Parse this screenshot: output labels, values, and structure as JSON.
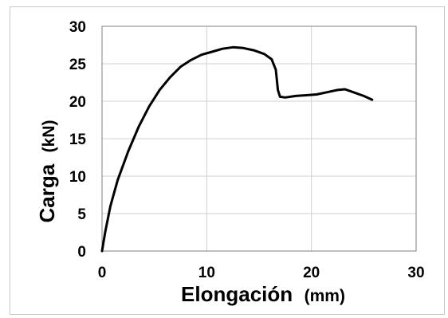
{
  "chart_data": {
    "type": "line",
    "title": "",
    "xlabel": "Elongación",
    "xlabel_unit": "(mm)",
    "ylabel": "Carga",
    "ylabel_unit": "(kN)",
    "xlim": [
      0,
      30
    ],
    "ylim": [
      0,
      30
    ],
    "xticks": [
      0,
      10,
      20,
      30
    ],
    "yticks": [
      0,
      5,
      10,
      15,
      20,
      25,
      30
    ],
    "grid": true,
    "legend": "none",
    "series": [
      {
        "color": "#000000",
        "x": [
          0,
          0.3,
          0.8,
          1.5,
          2.5,
          3.5,
          4.5,
          5.5,
          6.5,
          7.5,
          8.5,
          9.5,
          10.5,
          11.5,
          12.5,
          13.5,
          14.5,
          15.5,
          16.2,
          16.6,
          16.8,
          17.0,
          17.5,
          18.5,
          19.5,
          20.5,
          21.5,
          22.5,
          23.2,
          24.0,
          25.0,
          25.8
        ],
        "y": [
          0,
          2.5,
          6.0,
          9.5,
          13.3,
          16.6,
          19.3,
          21.5,
          23.2,
          24.6,
          25.5,
          26.2,
          26.6,
          27.0,
          27.2,
          27.1,
          26.8,
          26.3,
          25.6,
          24.2,
          21.5,
          20.6,
          20.5,
          20.7,
          20.8,
          20.9,
          21.2,
          21.5,
          21.6,
          21.2,
          20.7,
          20.2
        ]
      }
    ]
  }
}
